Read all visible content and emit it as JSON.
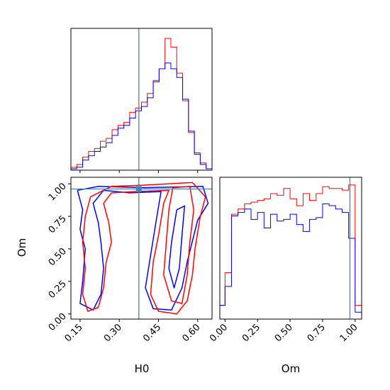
{
  "chart_data": {
    "type": "corner",
    "parameters": [
      "H0",
      "Om"
    ],
    "truth": {
      "H0": 0.375,
      "Om": 0.96
    },
    "colors": {
      "red": "#ff0000",
      "blue": "#0000ff",
      "truth": "#4682b4"
    },
    "panels": [
      {
        "name": "H0 marginal histogram",
        "type": "step-histogram",
        "xlim": [
          0.115,
          0.655
        ],
        "bin_edges": [
          0.115,
          0.1375,
          0.16,
          0.1825,
          0.205,
          0.2275,
          0.25,
          0.2725,
          0.295,
          0.3175,
          0.34,
          0.3625,
          0.385,
          0.4075,
          0.43,
          0.4525,
          0.475,
          0.4975,
          0.52,
          0.5425,
          0.565,
          0.5875,
          0.61,
          0.6325,
          0.655
        ],
        "series": [
          {
            "color": "red",
            "values": [
              0.02,
              0.04,
              0.09,
              0.13,
              0.15,
              0.2,
              0.22,
              0.28,
              0.31,
              0.33,
              0.4,
              0.43,
              0.47,
              0.53,
              0.62,
              0.7,
              0.91,
              0.85,
              0.67,
              0.48,
              0.26,
              0.12,
              0.05,
              0.01
            ]
          },
          {
            "color": "blue",
            "values": [
              0.01,
              0.02,
              0.07,
              0.1,
              0.13,
              0.16,
              0.19,
              0.24,
              0.29,
              0.31,
              0.36,
              0.41,
              0.44,
              0.5,
              0.61,
              0.7,
              0.74,
              0.7,
              0.64,
              0.49,
              0.27,
              0.11,
              0.04,
              0.01
            ]
          }
        ]
      },
      {
        "name": "Om marginal histogram",
        "type": "step-histogram",
        "xlim": [
          -0.04,
          1.05
        ],
        "bin_edges": [
          -0.04,
          0.0,
          0.05,
          0.1,
          0.15,
          0.2,
          0.25,
          0.3,
          0.35,
          0.4,
          0.45,
          0.5,
          0.55,
          0.6,
          0.65,
          0.7,
          0.75,
          0.8,
          0.85,
          0.9,
          0.95,
          1.0,
          1.05
        ],
        "series": [
          {
            "color": "red",
            "values": [
              0.08,
              0.27,
              0.61,
              0.64,
              0.67,
              0.68,
              0.69,
              0.7,
              0.73,
              0.72,
              0.76,
              0.7,
              0.66,
              0.73,
              0.69,
              0.73,
              0.77,
              0.76,
              0.76,
              0.75,
              0.78,
              0.08
            ]
          },
          {
            "color": "blue",
            "values": [
              0.08,
              0.19,
              0.6,
              0.62,
              0.64,
              0.58,
              0.62,
              0.53,
              0.61,
              0.57,
              0.58,
              0.61,
              0.55,
              0.51,
              0.58,
              0.59,
              0.67,
              0.66,
              0.64,
              0.62,
              0.47,
              0.04
            ]
          }
        ]
      },
      {
        "name": "H0 vs Om joint contours",
        "type": "contour",
        "xlim": [
          0.115,
          0.655
        ],
        "ylim": [
          -0.04,
          1.05
        ],
        "contours": [
          {
            "color": "blue",
            "points": [
              [
                0.14,
                0.95
              ],
              [
                0.22,
                0.98
              ],
              [
                0.4,
                0.97
              ],
              [
                0.62,
                0.98
              ],
              [
                0.64,
                0.85
              ],
              [
                0.6,
                0.72
              ],
              [
                0.56,
                0.4
              ],
              [
                0.54,
                0.2
              ],
              [
                0.5,
                0.03
              ],
              [
                0.43,
                0.04
              ],
              [
                0.4,
                0.2
              ],
              [
                0.42,
                0.45
              ],
              [
                0.44,
                0.7
              ],
              [
                0.46,
                0.94
              ],
              [
                0.34,
                0.93
              ],
              [
                0.24,
                0.95
              ],
              [
                0.2,
                0.85
              ],
              [
                0.22,
                0.7
              ],
              [
                0.23,
                0.55
              ],
              [
                0.24,
                0.35
              ],
              [
                0.23,
                0.15
              ],
              [
                0.2,
                0.03
              ],
              [
                0.15,
                0.08
              ],
              [
                0.16,
                0.25
              ],
              [
                0.17,
                0.5
              ],
              [
                0.15,
                0.65
              ],
              [
                0.16,
                0.8
              ],
              [
                0.14,
                0.95
              ]
            ]
          },
          {
            "color": "red",
            "points": [
              [
                0.27,
                0.98
              ],
              [
                0.4,
                0.99
              ],
              [
                0.58,
                1.01
              ],
              [
                0.63,
                0.9
              ],
              [
                0.61,
                0.75
              ],
              [
                0.59,
                0.5
              ],
              [
                0.58,
                0.3
              ],
              [
                0.56,
                0.1
              ],
              [
                0.52,
                0.0
              ],
              [
                0.45,
                0.02
              ],
              [
                0.42,
                0.15
              ],
              [
                0.43,
                0.4
              ],
              [
                0.45,
                0.6
              ],
              [
                0.47,
                0.85
              ],
              [
                0.49,
                0.95
              ],
              [
                0.36,
                0.94
              ],
              [
                0.27,
                0.93
              ],
              [
                0.24,
                0.85
              ],
              [
                0.26,
                0.7
              ],
              [
                0.27,
                0.55
              ],
              [
                0.25,
                0.4
              ],
              [
                0.24,
                0.2
              ],
              [
                0.22,
                0.05
              ],
              [
                0.18,
                0.02
              ],
              [
                0.16,
                0.15
              ],
              [
                0.17,
                0.35
              ],
              [
                0.16,
                0.55
              ],
              [
                0.17,
                0.75
              ],
              [
                0.19,
                0.9
              ],
              [
                0.27,
                0.98
              ]
            ]
          },
          {
            "color": "red",
            "points": [
              [
                0.505,
                0.97
              ],
              [
                0.57,
                0.98
              ],
              [
                0.585,
                0.8
              ],
              [
                0.57,
                0.55
              ],
              [
                0.56,
                0.3
              ],
              [
                0.54,
                0.08
              ],
              [
                0.5,
                0.1
              ],
              [
                0.47,
                0.3
              ],
              [
                0.48,
                0.55
              ],
              [
                0.49,
                0.8
              ],
              [
                0.505,
                0.97
              ]
            ]
          },
          {
            "color": "blue",
            "points": [
              [
                0.52,
                0.8
              ],
              [
                0.55,
                0.83
              ],
              [
                0.54,
                0.6
              ],
              [
                0.53,
                0.35
              ],
              [
                0.51,
                0.2
              ],
              [
                0.49,
                0.35
              ],
              [
                0.5,
                0.55
              ],
              [
                0.52,
                0.8
              ]
            ]
          }
        ]
      }
    ],
    "axes": {
      "H0": {
        "label": "H0",
        "ticks": [
          "0.15",
          "0.30",
          "0.45",
          "0.60"
        ],
        "tick_values": [
          0.15,
          0.3,
          0.45,
          0.6
        ]
      },
      "Om": {
        "label": "Om",
        "ticks": [
          "0.00",
          "0.25",
          "0.50",
          "0.75",
          "1.00"
        ],
        "tick_values": [
          0.0,
          0.25,
          0.5,
          0.75,
          1.0
        ]
      }
    }
  }
}
